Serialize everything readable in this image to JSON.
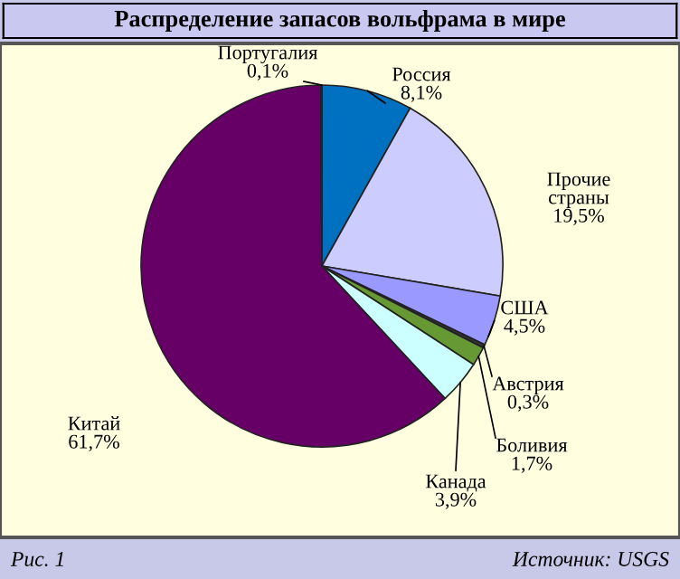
{
  "chart_data": {
    "type": "pie",
    "title": "Распределение запасов вольфрама в мире",
    "categories": [
      "Россия",
      "Прочие\nстраны",
      "США",
      "Австрия",
      "Боливия",
      "Канада",
      "Китай",
      "Португалия"
    ],
    "values": [
      8.1,
      19.5,
      4.5,
      0.3,
      1.7,
      3.9,
      61.7,
      0.1
    ],
    "value_labels": [
      "8,1%",
      "19,5%",
      "4,5%",
      "0,3%",
      "1,7%",
      "3,9%",
      "61,7%",
      "0,1%"
    ],
    "colors": [
      "#0070c0",
      "#ccccff",
      "#9999ff",
      "#333333",
      "#669933",
      "#ccffff",
      "#660066",
      "#993366"
    ],
    "annotations": [
      "Рис. 1",
      "Источник: USGS"
    ]
  }
}
